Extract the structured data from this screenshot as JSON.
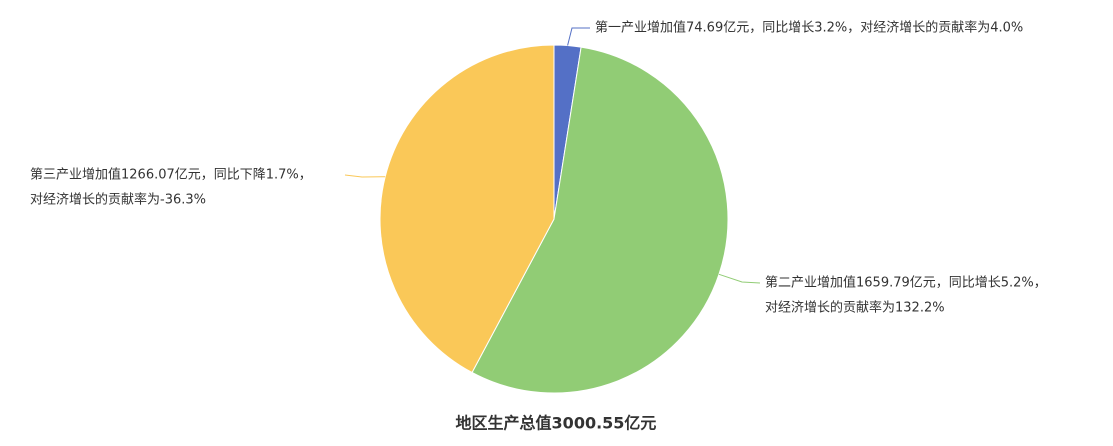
{
  "chart_data": {
    "type": "pie",
    "title": "地区生产总值3000.55亿元",
    "values": [
      74.69,
      1659.79,
      1266.07
    ],
    "colors": [
      "#5470c6",
      "#91cc75",
      "#fac858"
    ],
    "value_labels": [
      [
        "第一产业增加值74.69亿元，同比增长3.2%，对经济增长的贡献率为4.0%"
      ],
      [
        "第二产业增加值1659.79亿元，同比增长5.2%，",
        "对经济增长的贡献率为132.2%"
      ],
      [
        "第三产业增加值1266.07亿元，同比下降1.7%，",
        "对经济增长的贡献率为-36.3%"
      ]
    ]
  }
}
